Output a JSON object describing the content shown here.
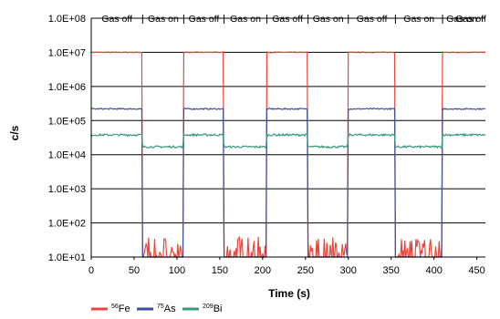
{
  "chart_data": {
    "type": "line",
    "title": "",
    "xlabel": "Time (s)",
    "ylabel": "c/s",
    "y_scale": "log",
    "xlim": [
      0,
      460
    ],
    "ylim": [
      10,
      100000000
    ],
    "x_ticks": [
      0,
      50,
      100,
      150,
      200,
      250,
      300,
      350,
      400,
      450
    ],
    "y_ticks": [
      {
        "value": 100000000,
        "label": "1.0E+08"
      },
      {
        "value": 10000000,
        "label": "1.0E+07"
      },
      {
        "value": 1000000,
        "label": "1.0E+06"
      },
      {
        "value": 100000,
        "label": "1.0E+05"
      },
      {
        "value": 10000,
        "label": "1.0E+04"
      },
      {
        "value": 1000,
        "label": "1.0E+03"
      },
      {
        "value": 100,
        "label": "1.0E+02"
      },
      {
        "value": 10,
        "label": "1.0E+01"
      }
    ],
    "grid": "horizontal",
    "legend_position": "bottom-left",
    "segment_annotations": [
      {
        "label": "Gas off",
        "x_start": 0,
        "x_end": 60
      },
      {
        "label": "Gas on",
        "x_start": 60,
        "x_end": 108
      },
      {
        "label": "Gas off",
        "x_start": 108,
        "x_end": 155
      },
      {
        "label": "Gas on",
        "x_start": 155,
        "x_end": 205
      },
      {
        "label": "Gas off",
        "x_start": 205,
        "x_end": 253
      },
      {
        "label": "Gas on",
        "x_start": 253,
        "x_end": 300
      },
      {
        "label": "Gas off",
        "x_start": 300,
        "x_end": 355
      },
      {
        "label": "Gas on",
        "x_start": 355,
        "x_end": 410
      },
      {
        "label": "Gas on",
        "x_start": 410,
        "x_end": 455
      },
      {
        "label": "Gas off",
        "x_start": 455,
        "x_end": 460
      }
    ],
    "series": [
      {
        "mass": "56",
        "element": "Fe",
        "color": "#e8473c",
        "gas_off_level": 10000000,
        "gas_on_level": 10,
        "gas_on_peak": 40,
        "transitions": [
          60,
          108,
          155,
          205,
          253,
          300,
          355,
          410
        ]
      },
      {
        "mass": "75",
        "element": "As",
        "color": "#3d4f9a",
        "gas_off_level": 220000,
        "gas_on_level": 10,
        "gas_on_peak": 10,
        "transitions": [
          60,
          108,
          155,
          205,
          253,
          300,
          355,
          410
        ]
      },
      {
        "mass": "209",
        "element": "Bi",
        "color": "#3a9a78",
        "gas_off_level": 38000,
        "gas_on_level": 17000,
        "gas_on_peak": 17000,
        "transitions": [
          60,
          108,
          155,
          205,
          253,
          300,
          355,
          410
        ]
      }
    ]
  }
}
